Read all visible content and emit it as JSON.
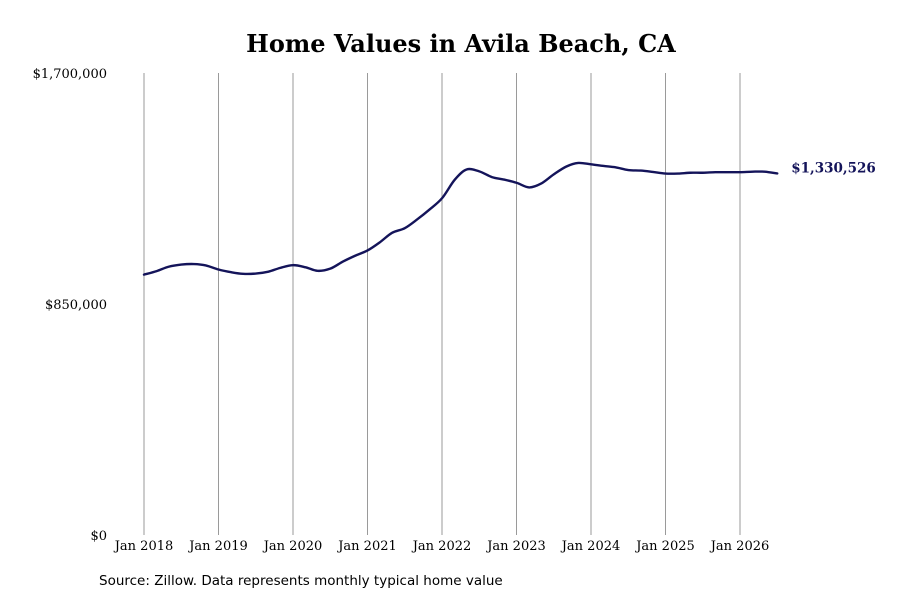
{
  "chart_data": {
    "type": "line",
    "title": "Home Values in Avila Beach, CA",
    "xlabel": "",
    "ylabel": "",
    "ylim": [
      0,
      1700000
    ],
    "yticks": [
      0,
      850000,
      1700000
    ],
    "ytick_labels": [
      "$0",
      "$850,000",
      "$1,700,000"
    ],
    "xlim": [
      2018.0,
      2026.5
    ],
    "xticks": [
      2018,
      2019,
      2020,
      2021,
      2022,
      2023,
      2024,
      2025,
      2026
    ],
    "xtick_labels": [
      "Jan 2018",
      "Jan 2019",
      "Jan 2020",
      "Jan 2021",
      "Jan 2022",
      "Jan 2023",
      "Jan 2024",
      "Jan 2025",
      "Jan 2026"
    ],
    "grid": "vertical",
    "legend": "none",
    "end_label": "$1,330,526",
    "series": [
      {
        "color": "#14145a",
        "x": [
          2018.0,
          2018.17,
          2018.33,
          2018.5,
          2018.67,
          2018.83,
          2019.0,
          2019.17,
          2019.33,
          2019.5,
          2019.67,
          2019.83,
          2020.0,
          2020.17,
          2020.33,
          2020.5,
          2020.67,
          2020.83,
          2021.0,
          2021.17,
          2021.33,
          2021.5,
          2021.67,
          2021.83,
          2022.0,
          2022.17,
          2022.33,
          2022.5,
          2022.67,
          2022.83,
          2023.0,
          2023.17,
          2023.33,
          2023.5,
          2023.67,
          2023.83,
          2024.0,
          2024.17,
          2024.33,
          2024.5,
          2024.67,
          2024.83,
          2025.0,
          2025.17,
          2025.33,
          2025.5,
          2025.67,
          2025.83,
          2026.0,
          2026.17,
          2026.33,
          2026.5
        ],
        "values": [
          958000,
          971000,
          987000,
          995000,
          997000,
          992000,
          977000,
          967000,
          961000,
          962000,
          969000,
          983000,
          993000,
          985000,
          972000,
          980000,
          1006000,
          1027000,
          1047000,
          1078000,
          1112000,
          1129000,
          1162000,
          1197000,
          1239000,
          1307000,
          1345000,
          1338000,
          1317000,
          1308000,
          1296000,
          1279000,
          1293000,
          1327000,
          1356000,
          1369000,
          1364000,
          1358000,
          1353000,
          1343000,
          1341000,
          1336000,
          1330000,
          1330000,
          1333000,
          1333000,
          1335000,
          1335000,
          1335000,
          1337000,
          1337000,
          1330526
        ]
      }
    ]
  },
  "source": "Source: Zillow. Data represents monthly typical home value"
}
